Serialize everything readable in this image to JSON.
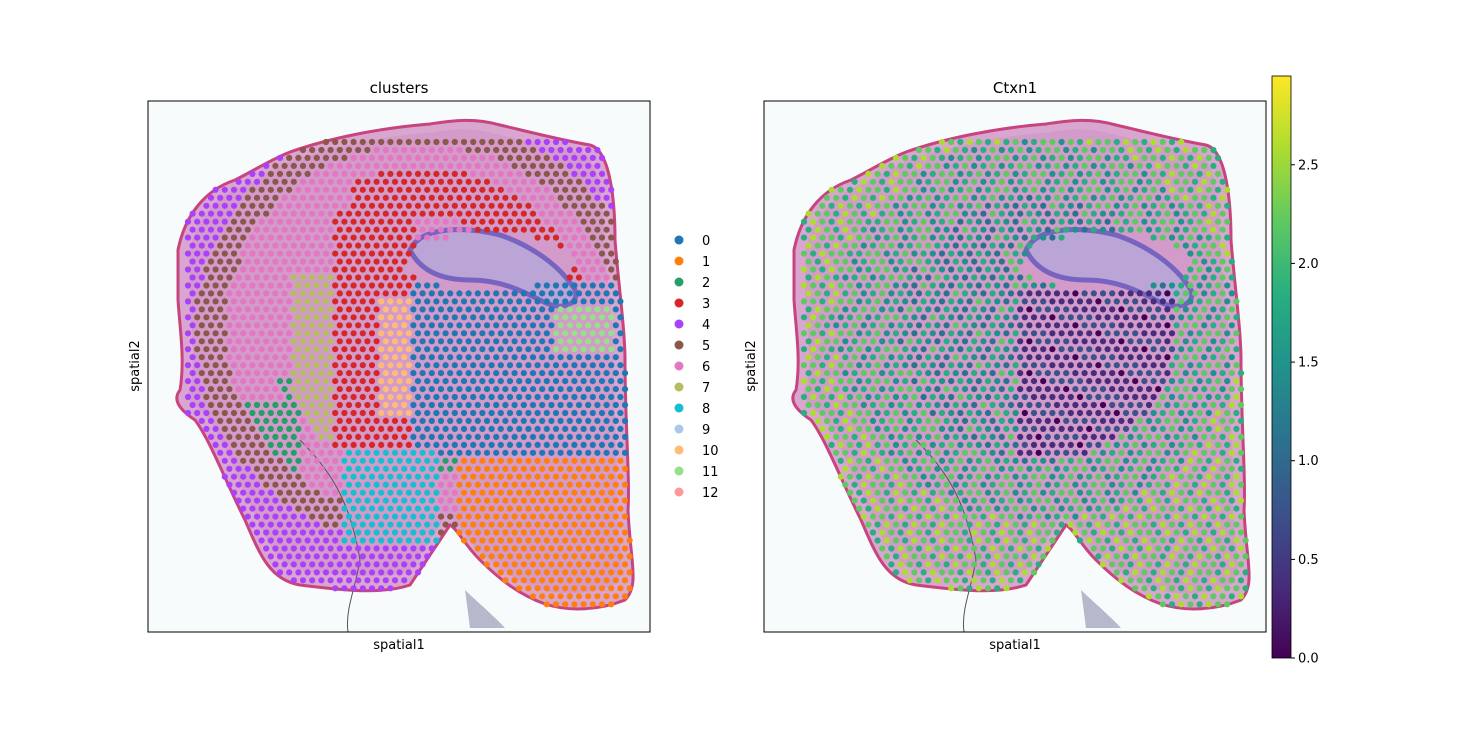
{
  "chart_data": [
    {
      "type": "scatter",
      "title": "clusters",
      "xlabel": "spatial1",
      "ylabel": "spatial2",
      "background": "H&E tissue image (mouse brain section)",
      "legend": {
        "placement": "right",
        "entries": [
          {
            "label": "0",
            "color": "#1f77b4"
          },
          {
            "label": "1",
            "color": "#ff7f0e"
          },
          {
            "label": "2",
            "color": "#279e68"
          },
          {
            "label": "3",
            "color": "#d62728"
          },
          {
            "label": "4",
            "color": "#aa40fc"
          },
          {
            "label": "5",
            "color": "#8c564b"
          },
          {
            "label": "6",
            "color": "#e377c2"
          },
          {
            "label": "7",
            "color": "#b5bd61"
          },
          {
            "label": "8",
            "color": "#17becf"
          },
          {
            "label": "9",
            "color": "#aec7e8"
          },
          {
            "label": "10",
            "color": "#ffbb78"
          },
          {
            "label": "11",
            "color": "#98df8a"
          },
          {
            "label": "12",
            "color": "#ff9896"
          }
        ]
      }
    },
    {
      "type": "scatter",
      "title": "Ctxn1",
      "xlabel": "spatial1",
      "ylabel": "spatial2",
      "background": "H&E tissue image (mouse brain section)",
      "colorbar": {
        "colormap": "viridis",
        "range": [
          0.0,
          2.95
        ],
        "ticks": [
          "0.0",
          "0.5",
          "1.0",
          "1.5",
          "2.0",
          "2.5"
        ]
      }
    }
  ]
}
